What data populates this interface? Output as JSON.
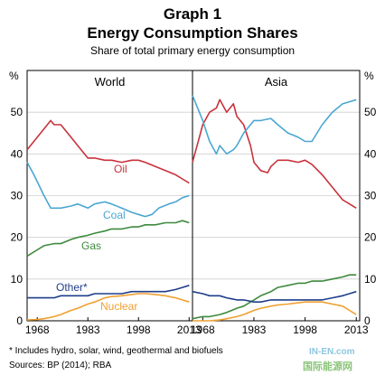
{
  "titles": {
    "line1": "Graph 1",
    "line2": "Energy Consumption Shares",
    "subtitle": "Share of total primary energy consumption"
  },
  "footnotes": {
    "note": "*    Includes hydro, solar, wind, geothermal and biofuels",
    "sources": "Sources:  BP (2014); RBA"
  },
  "watermark": {
    "line1": "IN-EN.com",
    "line2": "国际能源网"
  },
  "colors": {
    "oil": "#c8323c",
    "coal": "#4ba7d2",
    "gas": "#3d8a3d",
    "other": "#1f3d8a",
    "nuclear": "#f0a030"
  },
  "chart_data": [
    {
      "type": "line",
      "title": "World",
      "ylabel": "%",
      "ylim": [
        0,
        60
      ],
      "yticks": [
        0,
        10,
        20,
        30,
        40,
        50
      ],
      "xlim": [
        1965,
        2014
      ],
      "xticks": [
        1968,
        1983,
        1998,
        2013
      ],
      "grid": true,
      "series": [
        {
          "name": "Oil",
          "color_key": "oil",
          "x": [
            1965,
            1967,
            1970,
            1972,
            1973,
            1975,
            1978,
            1980,
            1983,
            1985,
            1988,
            1990,
            1993,
            1996,
            1998,
            2000,
            2003,
            2006,
            2009,
            2011,
            2013
          ],
          "y": [
            41,
            43,
            46,
            48,
            47,
            47,
            44,
            42,
            39,
            39,
            38.5,
            38.5,
            38,
            38.5,
            38.5,
            38,
            37,
            36,
            35,
            34,
            33
          ]
        },
        {
          "name": "Coal",
          "color_key": "coal",
          "x": [
            1965,
            1967,
            1970,
            1972,
            1975,
            1978,
            1980,
            1983,
            1985,
            1988,
            1990,
            1993,
            1996,
            1998,
            2000,
            2002,
            2004,
            2007,
            2009,
            2011,
            2013
          ],
          "y": [
            38,
            35,
            30,
            27,
            27,
            27.5,
            28,
            27,
            28,
            28.5,
            28,
            27,
            26,
            25.5,
            25,
            25.5,
            27,
            28,
            28.5,
            29.5,
            30
          ]
        },
        {
          "name": "Gas",
          "color_key": "gas",
          "x": [
            1965,
            1968,
            1970,
            1973,
            1975,
            1978,
            1980,
            1983,
            1985,
            1988,
            1990,
            1993,
            1996,
            1998,
            2000,
            2003,
            2006,
            2009,
            2011,
            2013
          ],
          "y": [
            15.5,
            17,
            18,
            18.5,
            18.5,
            19.5,
            20,
            20.5,
            21,
            21.5,
            22,
            22,
            22.5,
            22.5,
            23,
            23,
            23.5,
            23.5,
            24,
            23.5
          ]
        },
        {
          "name": "Other*",
          "color_key": "other",
          "x": [
            1965,
            1968,
            1970,
            1973,
            1975,
            1978,
            1980,
            1983,
            1985,
            1988,
            1990,
            1993,
            1996,
            1998,
            2000,
            2003,
            2006,
            2009,
            2011,
            2013
          ],
          "y": [
            5.5,
            5.5,
            5.5,
            5.5,
            6,
            6,
            6,
            6,
            6.5,
            6.5,
            6.5,
            6.5,
            7,
            7,
            7,
            7,
            7,
            7.5,
            8,
            8.5
          ]
        },
        {
          "name": "Nuclear",
          "color_key": "nuclear",
          "x": [
            1965,
            1968,
            1970,
            1973,
            1975,
            1978,
            1980,
            1983,
            1985,
            1988,
            1990,
            1993,
            1996,
            1998,
            2000,
            2003,
            2006,
            2009,
            2011,
            2013
          ],
          "y": [
            0.2,
            0.3,
            0.5,
            1,
            1.5,
            2.5,
            3,
            4,
            4.5,
            5.5,
            5.8,
            6,
            6.3,
            6.5,
            6.5,
            6.3,
            6,
            5.5,
            5,
            4.5
          ]
        }
      ]
    },
    {
      "type": "line",
      "title": "Asia",
      "ylabel": "%",
      "ylim": [
        0,
        60
      ],
      "yticks": [
        0,
        10,
        20,
        30,
        40,
        50
      ],
      "xlim": [
        1965,
        2014
      ],
      "xticks": [
        1968,
        1983,
        1998,
        2013
      ],
      "grid": true,
      "series": [
        {
          "name": "Oil",
          "color_key": "oil",
          "x": [
            1965,
            1967,
            1968,
            1970,
            1972,
            1973,
            1975,
            1977,
            1978,
            1980,
            1982,
            1983,
            1985,
            1987,
            1988,
            1990,
            1993,
            1996,
            1998,
            2000,
            2003,
            2006,
            2009,
            2011,
            2013
          ],
          "y": [
            38,
            44,
            47,
            50,
            51,
            53,
            50,
            52,
            49,
            47,
            42,
            38,
            36,
            35.5,
            37,
            38.5,
            38.5,
            38,
            38.5,
            37.5,
            35,
            32,
            29,
            28,
            27
          ]
        },
        {
          "name": "Coal",
          "color_key": "coal",
          "x": [
            1965,
            1967,
            1968,
            1970,
            1972,
            1973,
            1975,
            1977,
            1978,
            1980,
            1982,
            1983,
            1985,
            1988,
            1990,
            1993,
            1996,
            1998,
            2000,
            2003,
            2006,
            2009,
            2011,
            2013
          ],
          "y": [
            54,
            50,
            48,
            43,
            40,
            42,
            40,
            41,
            42,
            45,
            47,
            48,
            48,
            48.5,
            47,
            45,
            44,
            43,
            43,
            47,
            50,
            52,
            52.5,
            53
          ]
        },
        {
          "name": "Gas",
          "color_key": "gas",
          "x": [
            1965,
            1968,
            1970,
            1973,
            1975,
            1978,
            1980,
            1983,
            1985,
            1988,
            1990,
            1993,
            1996,
            1998,
            2000,
            2003,
            2006,
            2009,
            2011,
            2013
          ],
          "y": [
            0.5,
            1,
            1,
            1.5,
            2,
            3,
            3.5,
            5,
            6,
            7,
            8,
            8.5,
            9,
            9,
            9.5,
            9.5,
            10,
            10.5,
            11,
            11
          ]
        },
        {
          "name": "Other*",
          "color_key": "other",
          "x": [
            1965,
            1968,
            1970,
            1973,
            1975,
            1978,
            1980,
            1983,
            1985,
            1988,
            1990,
            1993,
            1996,
            1998,
            2000,
            2003,
            2006,
            2009,
            2011,
            2013
          ],
          "y": [
            7,
            6.5,
            6,
            6,
            5.5,
            5,
            5,
            4.5,
            4.5,
            5,
            5,
            5,
            5,
            5,
            5,
            5,
            5.5,
            6,
            6.5,
            7
          ]
        },
        {
          "name": "Nuclear",
          "color_key": "nuclear",
          "x": [
            1965,
            1970,
            1973,
            1975,
            1978,
            1980,
            1983,
            1985,
            1988,
            1990,
            1993,
            1996,
            1998,
            2000,
            2003,
            2006,
            2009,
            2011,
            2013
          ],
          "y": [
            0,
            0,
            0.2,
            0.5,
            1,
            1.5,
            2.5,
            3,
            3.5,
            3.8,
            4,
            4.3,
            4.5,
            4.5,
            4.5,
            4,
            3.5,
            2.5,
            1.5
          ]
        }
      ]
    }
  ]
}
